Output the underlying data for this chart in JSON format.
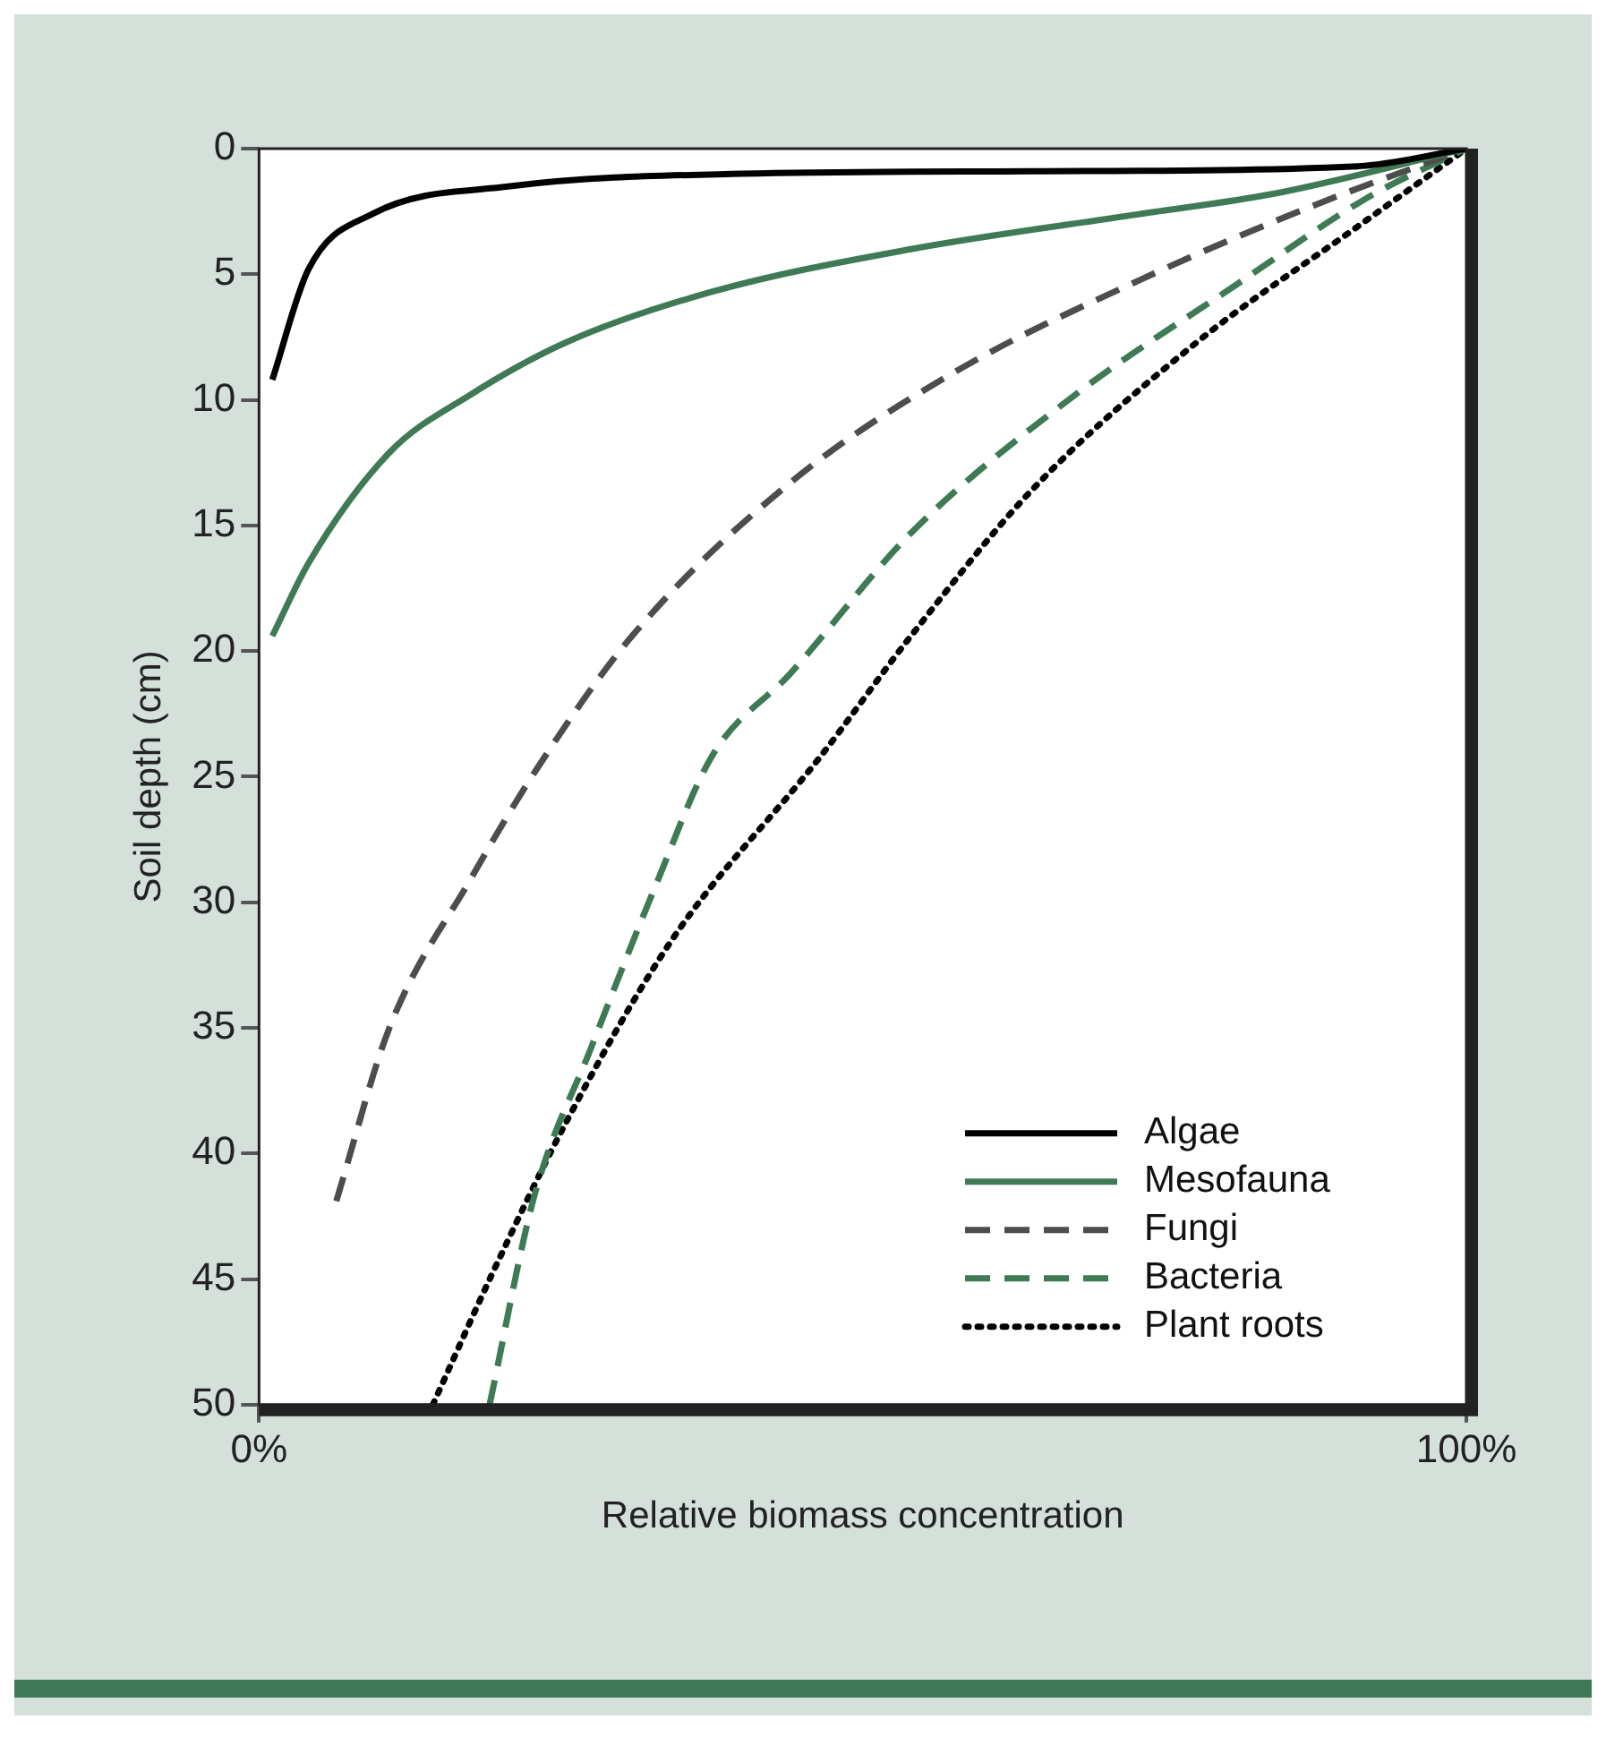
{
  "chart_data": {
    "type": "line",
    "xlabel": "Relative biomass concentration",
    "ylabel": "Soil depth (cm)",
    "xlim": [
      0,
      100
    ],
    "xticks": [
      {
        "value": 0,
        "label": "0%"
      },
      {
        "value": 100,
        "label": "100%"
      }
    ],
    "ylim": [
      50,
      0
    ],
    "yticks": [
      0,
      5,
      10,
      15,
      20,
      25,
      30,
      35,
      40,
      45,
      50
    ],
    "grid": false,
    "legend": "bottom right",
    "marker": "none",
    "series": [
      {
        "name": "Algae",
        "color": "#000000",
        "line_style": "solid",
        "x": [
          1.1,
          4.1,
          9.4,
          20.8,
          40,
          64,
          91,
          100
        ],
        "values": [
          9.2,
          4.8,
          2.6,
          1.5,
          1.0,
          0.9,
          0.7,
          0
        ]
      },
      {
        "name": "Mesofauna",
        "color": "#3f7a56",
        "line_style": "solid",
        "x": [
          1.1,
          4.1,
          10.8,
          17.5,
          25.5,
          37.5,
          54,
          73,
          84,
          100
        ],
        "values": [
          19.4,
          16.5,
          12.1,
          9.8,
          7.7,
          5.7,
          4.0,
          2.6,
          1.8,
          0
        ]
      },
      {
        "name": "Fungi",
        "color": "#4d4d4d",
        "line_style": "dashed",
        "x": [
          6.4,
          10.8,
          17.5,
          23,
          30.9,
          44,
          57.6,
          74,
          87.7,
          100
        ],
        "values": [
          41.9,
          35,
          29.1,
          24.7,
          19.4,
          13.3,
          8.9,
          5.0,
          2.2,
          0
        ]
      },
      {
        "name": "Bacteria",
        "color": "#3f7a56",
        "line_style": "dashed",
        "x": [
          19.1,
          22.8,
          27.5,
          32.8,
          37.5,
          44,
          54,
          67.6,
          81,
          92,
          100
        ],
        "values": [
          50,
          41.7,
          35.8,
          29.4,
          24.2,
          20.9,
          15.3,
          9.8,
          5.4,
          1.9,
          0
        ]
      },
      {
        "name": "Plant roots",
        "color": "#000000",
        "line_style": "dotted",
        "x": [
          14.4,
          19.5,
          25.5,
          34.2,
          46.5,
          54,
          64,
          77.7,
          91,
          100
        ],
        "values": [
          50,
          44.6,
          38.7,
          31.5,
          24.2,
          19.4,
          13.6,
          7.7,
          3.1,
          0
        ]
      }
    ]
  }
}
